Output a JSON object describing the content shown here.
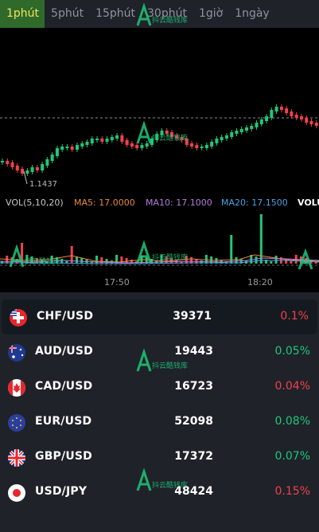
{
  "tabs": [
    {
      "label": "1phút",
      "active": true
    },
    {
      "label": "5phút"
    },
    {
      "label": "15phút"
    },
    {
      "label": "30phút"
    },
    {
      "label": "1giờ"
    },
    {
      "label": "1ngày"
    }
  ],
  "chart": {
    "low_label": "1.1437",
    "indicators": {
      "vol": "VOL(5,10,20)",
      "ma5": "MA5: 17.0000",
      "ma10": "MA10: 17.1000",
      "ma20": "MA20: 17.1500",
      "volu": "VOLU"
    },
    "time_labels": [
      "17:50",
      "18:20"
    ],
    "colors": {
      "up": "#1fc77a",
      "down": "#f0414a",
      "ma5": "#e8883a",
      "ma10": "#b57be0",
      "ma20": "#4aa3e8"
    }
  },
  "watermark": "抖云酷钱库",
  "pairs": [
    {
      "symbol": "CHF/USD",
      "volume": "39371",
      "change": "0.1%",
      "dir": "down",
      "flag": "chf-usd-flag-icon"
    },
    {
      "symbol": "AUD/USD",
      "volume": "19443",
      "change": "0.05%",
      "dir": "up",
      "flag": "aud-usd-flag-icon"
    },
    {
      "symbol": "CAD/USD",
      "volume": "16723",
      "change": "0.04%",
      "dir": "down",
      "flag": "cad-usd-flag-icon"
    },
    {
      "symbol": "EUR/USD",
      "volume": "52098",
      "change": "0.08%",
      "dir": "up",
      "flag": "eur-usd-flag-icon"
    },
    {
      "symbol": "GBP/USD",
      "volume": "17372",
      "change": "0.07%",
      "dir": "up",
      "flag": "gbp-usd-flag-icon"
    },
    {
      "symbol": "USD/JPY",
      "volume": "48424",
      "change": "0.15%",
      "dir": "down",
      "flag": "usd-jpy-flag-icon"
    }
  ]
}
